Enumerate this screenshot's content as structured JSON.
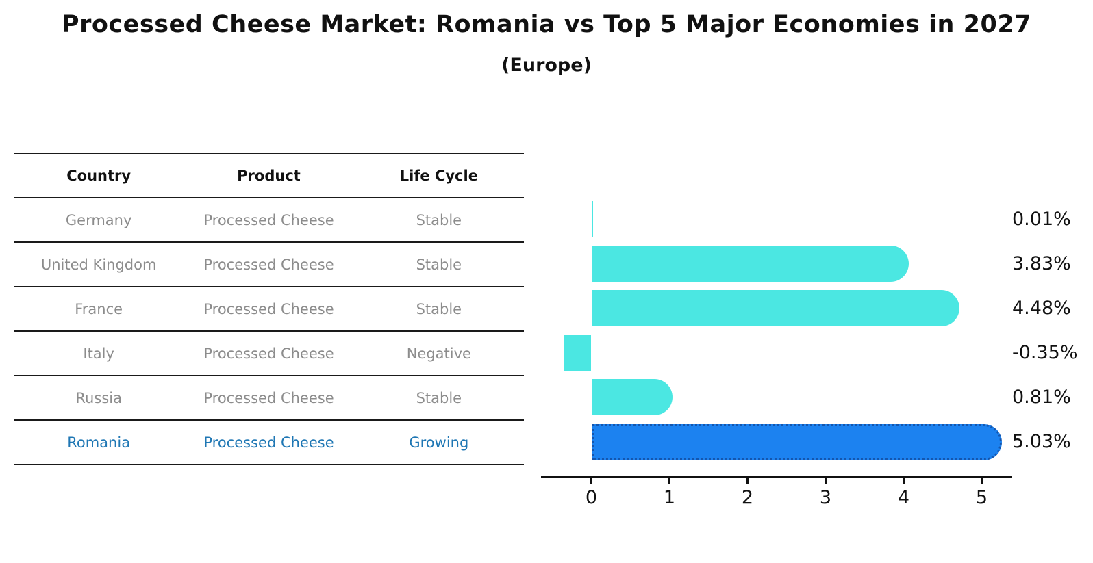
{
  "title": "Processed Cheese Market: Romania vs Top 5 Major Economies in 2027",
  "subtitle": "(Europe)",
  "table": {
    "headers": [
      "Country",
      "Product",
      "Life Cycle"
    ],
    "rows": [
      {
        "country": "Germany",
        "product": "Processed Cheese",
        "life_cycle": "Stable",
        "highlight": false
      },
      {
        "country": "United Kingdom",
        "product": "Processed Cheese",
        "life_cycle": "Stable",
        "highlight": false
      },
      {
        "country": "France",
        "product": "Processed Cheese",
        "life_cycle": "Stable",
        "highlight": false
      },
      {
        "country": "Italy",
        "product": "Processed Cheese",
        "life_cycle": "Negative",
        "highlight": false
      },
      {
        "country": "Russia",
        "product": "Processed Cheese",
        "life_cycle": "Stable",
        "highlight": false
      },
      {
        "country": "Romania",
        "product": "Processed Cheese",
        "life_cycle": "Growing",
        "highlight": true
      }
    ]
  },
  "chart_data": {
    "type": "bar",
    "orientation": "horizontal",
    "categories": [
      "Germany",
      "United Kingdom",
      "France",
      "Italy",
      "Russia",
      "Romania"
    ],
    "values": [
      0.01,
      3.83,
      4.48,
      -0.35,
      0.81,
      5.03
    ],
    "value_labels": [
      "0.01%",
      "3.83%",
      "4.48%",
      "-0.35%",
      "0.81%",
      "5.03%"
    ],
    "units": "percent CAGR",
    "xticks": [
      "0",
      "1",
      "2",
      "3",
      "4",
      "5"
    ],
    "xlim": [
      -0.65,
      5.4
    ],
    "grid": false,
    "legend": false,
    "bar_color": "#4be7e2",
    "highlight_bar_color": "#1c82f0",
    "highlight_bar_edge_color": "#1456ae",
    "highlight_text_color": "#1f77b4",
    "highlight_index": 5
  }
}
